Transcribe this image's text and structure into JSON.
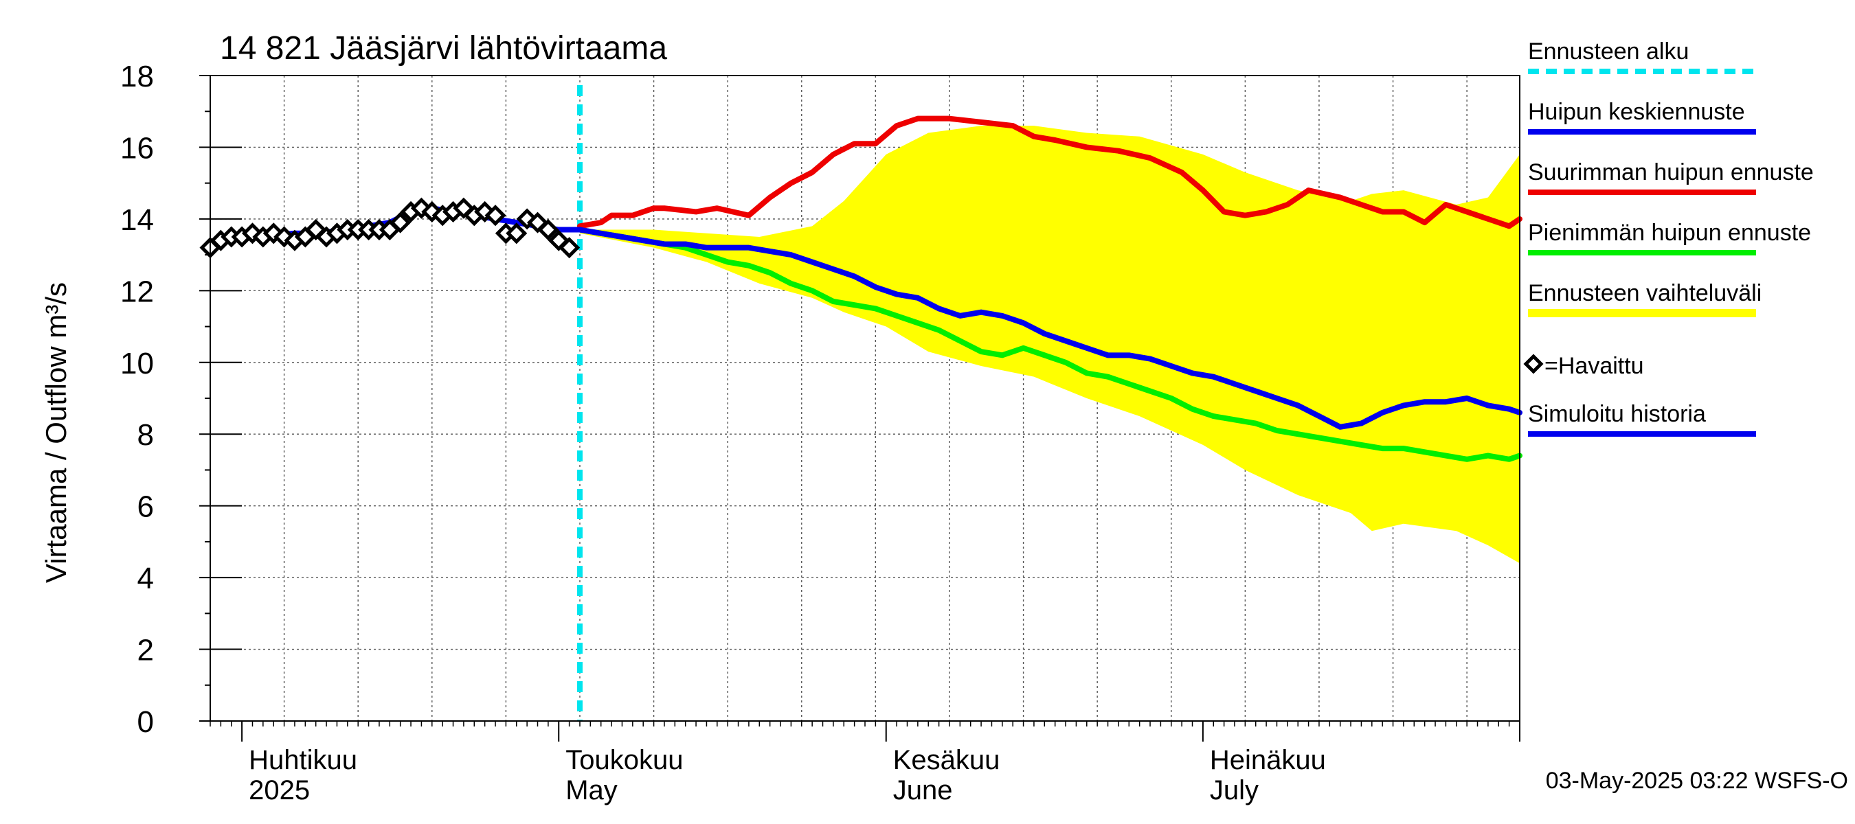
{
  "chart_data": {
    "type": "line",
    "title": "14 821 Jääsjärvi lähtövirtaama",
    "ylabel": "Virtaama / Outflow    m³/s",
    "xlabel": "",
    "x_range": [
      "2025-03-29",
      "2025-07-31"
    ],
    "ylim": [
      0,
      18
    ],
    "yticks": [
      0,
      2,
      4,
      6,
      8,
      10,
      12,
      14,
      16,
      18
    ],
    "grid": true,
    "month_labels": [
      {
        "date": "2025-04-01",
        "fi": "Huhtikuu",
        "en": "2025"
      },
      {
        "date": "2025-05-01",
        "fi": "Toukokuu",
        "en": "May"
      },
      {
        "date": "2025-06-01",
        "fi": "Kesäkuu",
        "en": "June"
      },
      {
        "date": "2025-07-01",
        "fi": "Heinäkuu",
        "en": "July"
      }
    ],
    "forecast_start": "2025-05-03",
    "timestamp": "03-May-2025 03:22 WSFS-O",
    "legend": {
      "placement": "right",
      "items": [
        {
          "label": "Ennusteen alku",
          "color": "#00e5ee",
          "style": "dashed"
        },
        {
          "label": "Huipun keskiennuste",
          "color": "#0000ee",
          "style": "line"
        },
        {
          "label": "Suurimman huipun ennuste",
          "color": "#ee0000",
          "style": "line"
        },
        {
          "label": "Pienimmän huipun ennuste",
          "color": "#00ee00",
          "style": "line"
        },
        {
          "label": "Ennusteen vaihteluväli",
          "color": "#ffff00",
          "style": "band"
        },
        {
          "label": "=Havaittu",
          "color": "#000000",
          "style": "diamond"
        },
        {
          "label": "Simuloitu historia",
          "color": "#0000ee",
          "style": "line"
        }
      ]
    },
    "series": [
      {
        "name": "Ennusteen vaihteluväli",
        "kind": "band",
        "color": "#ffff00",
        "x": [
          "2025-05-03",
          "2025-05-10",
          "2025-05-15",
          "2025-05-20",
          "2025-05-25",
          "2025-05-28",
          "2025-06-01",
          "2025-06-05",
          "2025-06-10",
          "2025-06-15",
          "2025-06-20",
          "2025-06-25",
          "2025-07-01",
          "2025-07-05",
          "2025-07-10",
          "2025-07-15",
          "2025-07-17",
          "2025-07-20",
          "2025-07-25",
          "2025-07-28",
          "2025-07-31"
        ],
        "upper": [
          13.7,
          13.7,
          13.6,
          13.5,
          13.8,
          14.5,
          15.8,
          16.4,
          16.6,
          16.6,
          16.4,
          16.3,
          15.8,
          15.3,
          14.8,
          14.5,
          14.7,
          14.8,
          14.4,
          14.6,
          15.8
        ],
        "lower": [
          13.6,
          13.2,
          12.8,
          12.2,
          11.8,
          11.4,
          11.0,
          10.3,
          9.9,
          9.6,
          9.0,
          8.5,
          7.7,
          7.0,
          6.3,
          5.8,
          5.3,
          5.5,
          5.3,
          4.9,
          4.4
        ]
      },
      {
        "name": "Suurimman huipun ennuste",
        "color": "#ee0000",
        "x": [
          "2025-05-03",
          "2025-05-05",
          "2025-05-06",
          "2025-05-08",
          "2025-05-10",
          "2025-05-11",
          "2025-05-14",
          "2025-05-16",
          "2025-05-19",
          "2025-05-21",
          "2025-05-23",
          "2025-05-25",
          "2025-05-27",
          "2025-05-29",
          "2025-05-31",
          "2025-06-02",
          "2025-06-04",
          "2025-06-05",
          "2025-06-07",
          "2025-06-10",
          "2025-06-13",
          "2025-06-15",
          "2025-06-17",
          "2025-06-20",
          "2025-06-23",
          "2025-06-26",
          "2025-06-29",
          "2025-07-01",
          "2025-07-03",
          "2025-07-05",
          "2025-07-07",
          "2025-07-09",
          "2025-07-11",
          "2025-07-14",
          "2025-07-16",
          "2025-07-18",
          "2025-07-20",
          "2025-07-22",
          "2025-07-24",
          "2025-07-26",
          "2025-07-28",
          "2025-07-30",
          "2025-07-31"
        ],
        "values": [
          13.8,
          13.9,
          14.1,
          14.1,
          14.3,
          14.3,
          14.2,
          14.3,
          14.1,
          14.6,
          15.0,
          15.3,
          15.8,
          16.1,
          16.1,
          16.6,
          16.8,
          16.8,
          16.8,
          16.7,
          16.6,
          16.3,
          16.2,
          16.0,
          15.9,
          15.7,
          15.3,
          14.8,
          14.2,
          14.1,
          14.2,
          14.4,
          14.8,
          14.6,
          14.4,
          14.2,
          14.2,
          13.9,
          14.4,
          14.2,
          14.0,
          13.8,
          14.0
        ]
      },
      {
        "name": "Huipun keskiennuste",
        "color": "#0000ee",
        "x": [
          "2025-05-03",
          "2025-05-05",
          "2025-05-07",
          "2025-05-09",
          "2025-05-11",
          "2025-05-13",
          "2025-05-15",
          "2025-05-17",
          "2025-05-19",
          "2025-05-21",
          "2025-05-23",
          "2025-05-25",
          "2025-05-27",
          "2025-05-29",
          "2025-05-31",
          "2025-06-02",
          "2025-06-04",
          "2025-06-06",
          "2025-06-08",
          "2025-06-10",
          "2025-06-12",
          "2025-06-14",
          "2025-06-16",
          "2025-06-18",
          "2025-06-20",
          "2025-06-22",
          "2025-06-24",
          "2025-06-26",
          "2025-06-28",
          "2025-06-30",
          "2025-07-02",
          "2025-07-04",
          "2025-07-06",
          "2025-07-08",
          "2025-07-10",
          "2025-07-12",
          "2025-07-14",
          "2025-07-16",
          "2025-07-18",
          "2025-07-20",
          "2025-07-22",
          "2025-07-24",
          "2025-07-26",
          "2025-07-28",
          "2025-07-30",
          "2025-07-31"
        ],
        "values": [
          13.7,
          13.6,
          13.5,
          13.4,
          13.3,
          13.3,
          13.2,
          13.2,
          13.2,
          13.1,
          13.0,
          12.8,
          12.6,
          12.4,
          12.1,
          11.9,
          11.8,
          11.5,
          11.3,
          11.4,
          11.3,
          11.1,
          10.8,
          10.6,
          10.4,
          10.2,
          10.2,
          10.1,
          9.9,
          9.7,
          9.6,
          9.4,
          9.2,
          9.0,
          8.8,
          8.5,
          8.2,
          8.3,
          8.6,
          8.8,
          8.9,
          8.9,
          9.0,
          8.8,
          8.7,
          8.6
        ]
      },
      {
        "name": "Pienimmän huipun ennuste",
        "color": "#00ee00",
        "x": [
          "2025-05-03",
          "2025-05-05",
          "2025-05-07",
          "2025-05-09",
          "2025-05-11",
          "2025-05-13",
          "2025-05-15",
          "2025-05-17",
          "2025-05-19",
          "2025-05-21",
          "2025-05-23",
          "2025-05-25",
          "2025-05-27",
          "2025-05-29",
          "2025-05-31",
          "2025-06-02",
          "2025-06-04",
          "2025-06-06",
          "2025-06-08",
          "2025-06-10",
          "2025-06-12",
          "2025-06-14",
          "2025-06-16",
          "2025-06-18",
          "2025-06-20",
          "2025-06-22",
          "2025-06-24",
          "2025-06-26",
          "2025-06-28",
          "2025-06-30",
          "2025-07-02",
          "2025-07-04",
          "2025-07-06",
          "2025-07-08",
          "2025-07-10",
          "2025-07-12",
          "2025-07-14",
          "2025-07-16",
          "2025-07-18",
          "2025-07-20",
          "2025-07-22",
          "2025-07-24",
          "2025-07-26",
          "2025-07-28",
          "2025-07-30",
          "2025-07-31"
        ],
        "values": [
          13.7,
          13.6,
          13.5,
          13.4,
          13.3,
          13.2,
          13.0,
          12.8,
          12.7,
          12.5,
          12.2,
          12.0,
          11.7,
          11.6,
          11.5,
          11.3,
          11.1,
          10.9,
          10.6,
          10.3,
          10.2,
          10.4,
          10.2,
          10.0,
          9.7,
          9.6,
          9.4,
          9.2,
          9.0,
          8.7,
          8.5,
          8.4,
          8.3,
          8.1,
          8.0,
          7.9,
          7.8,
          7.7,
          7.6,
          7.6,
          7.5,
          7.4,
          7.3,
          7.4,
          7.3,
          7.4
        ]
      },
      {
        "name": "Simuloitu historia",
        "color": "#0000ee",
        "x": [
          "2025-03-29",
          "2025-04-02",
          "2025-04-06",
          "2025-04-08",
          "2025-04-11",
          "2025-04-13",
          "2025-04-15",
          "2025-04-17",
          "2025-04-19",
          "2025-04-21",
          "2025-04-23",
          "2025-04-25",
          "2025-04-27",
          "2025-04-29",
          "2025-05-01",
          "2025-05-03"
        ],
        "values": [
          13.3,
          13.5,
          13.6,
          13.6,
          13.7,
          13.8,
          13.9,
          14.2,
          14.3,
          14.2,
          14.1,
          14.0,
          13.9,
          13.8,
          13.7,
          13.7
        ]
      },
      {
        "name": "=Havaittu",
        "kind": "points",
        "color": "#000000",
        "x": [
          "2025-03-29",
          "2025-03-30",
          "2025-03-31",
          "2025-04-01",
          "2025-04-02",
          "2025-04-03",
          "2025-04-04",
          "2025-04-05",
          "2025-04-06",
          "2025-04-07",
          "2025-04-08",
          "2025-04-09",
          "2025-04-10",
          "2025-04-11",
          "2025-04-12",
          "2025-04-13",
          "2025-04-14",
          "2025-04-15",
          "2025-04-16",
          "2025-04-17",
          "2025-04-18",
          "2025-04-19",
          "2025-04-20",
          "2025-04-21",
          "2025-04-22",
          "2025-04-23",
          "2025-04-24",
          "2025-04-25",
          "2025-04-26",
          "2025-04-27",
          "2025-04-28",
          "2025-04-29",
          "2025-04-30",
          "2025-05-01",
          "2025-05-02"
        ],
        "values": [
          13.2,
          13.4,
          13.5,
          13.5,
          13.6,
          13.5,
          13.6,
          13.5,
          13.4,
          13.5,
          13.7,
          13.5,
          13.6,
          13.7,
          13.7,
          13.7,
          13.7,
          13.7,
          13.9,
          14.2,
          14.3,
          14.2,
          14.1,
          14.2,
          14.3,
          14.1,
          14.2,
          14.1,
          13.6,
          13.6,
          14.0,
          13.9,
          13.7,
          13.4,
          13.2
        ]
      }
    ]
  }
}
